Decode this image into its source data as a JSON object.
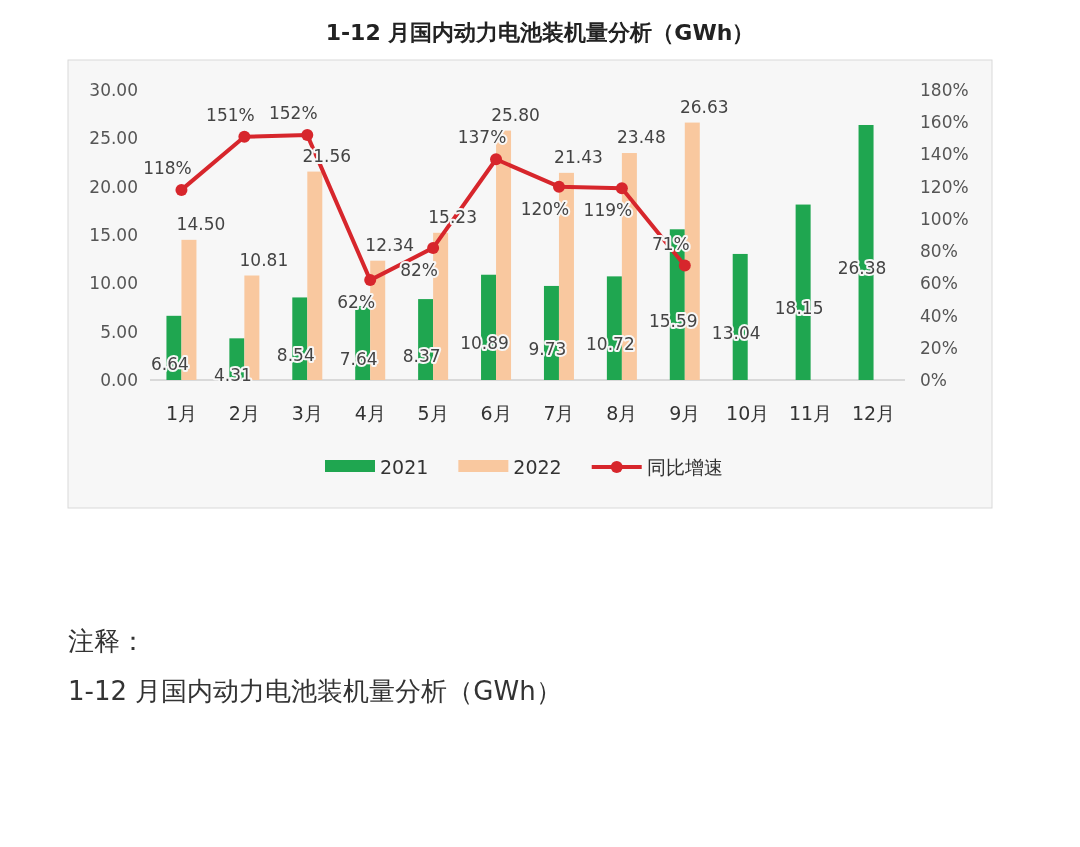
{
  "chart_data": {
    "type": "bar",
    "title": "1-12 月国内动力电池装机量分析（GWh）",
    "categories": [
      "1月",
      "2月",
      "3月",
      "4月",
      "5月",
      "6月",
      "7月",
      "8月",
      "9月",
      "10月",
      "11月",
      "12月"
    ],
    "series": [
      {
        "name": "2021",
        "color": "#1fa650",
        "values": [
          6.64,
          4.31,
          8.54,
          7.64,
          8.37,
          10.89,
          9.73,
          10.72,
          15.59,
          13.04,
          18.15,
          26.38
        ],
        "value_labels": [
          "6.64",
          "4.31",
          "8.54",
          "7.64",
          "8.37",
          "10.89",
          "9.73",
          "10.72",
          "15.59",
          "13.04",
          "18.15",
          "26.38"
        ]
      },
      {
        "name": "2022",
        "color": "#f9c89f",
        "values": [
          14.5,
          10.81,
          21.56,
          12.34,
          15.23,
          25.8,
          21.43,
          23.48,
          26.63,
          null,
          null,
          null
        ],
        "value_labels": [
          "14.50",
          "10.81",
          "21.56",
          "12.34",
          "15.23",
          "25.80",
          "21.43",
          "23.48",
          "26.63",
          null,
          null,
          null
        ]
      },
      {
        "name": "同比增速",
        "type": "line",
        "axis": "y2",
        "color": "#d7262c",
        "marker": "circle",
        "values": [
          118,
          151,
          152,
          62,
          82,
          137,
          120,
          119,
          71,
          null,
          null,
          null
        ],
        "value_labels": [
          "118%",
          "151%",
          "152%",
          "62%",
          "82%",
          "137%",
          "120%",
          "119%",
          "71%",
          null,
          null,
          null
        ]
      }
    ],
    "ylim": [
      0,
      30
    ],
    "yticks": [
      {
        "value": 0,
        "label": "0.00"
      },
      {
        "value": 5,
        "label": "5.00"
      },
      {
        "value": 10,
        "label": "10.00"
      },
      {
        "value": 15,
        "label": "15.00"
      },
      {
        "value": 20,
        "label": "20.00"
      },
      {
        "value": 25,
        "label": "25.00"
      },
      {
        "value": 30,
        "label": "30.00"
      }
    ],
    "y2lim": [
      0,
      180
    ],
    "y2ticks": [
      {
        "value": 0,
        "label": "0%"
      },
      {
        "value": 20,
        "label": "20%"
      },
      {
        "value": 40,
        "label": "40%"
      },
      {
        "value": 60,
        "label": "60%"
      },
      {
        "value": 80,
        "label": "80%"
      },
      {
        "value": 100,
        "label": "100%"
      },
      {
        "value": 120,
        "label": "120%"
      },
      {
        "value": 140,
        "label": "140%"
      },
      {
        "value": 160,
        "label": "160%"
      },
      {
        "value": 180,
        "label": "180%"
      }
    ],
    "grid": false,
    "legend": "bottom",
    "annotations": [
      "注释：",
      "1-12 月国内动力电池装机量分析（GWh）"
    ]
  }
}
